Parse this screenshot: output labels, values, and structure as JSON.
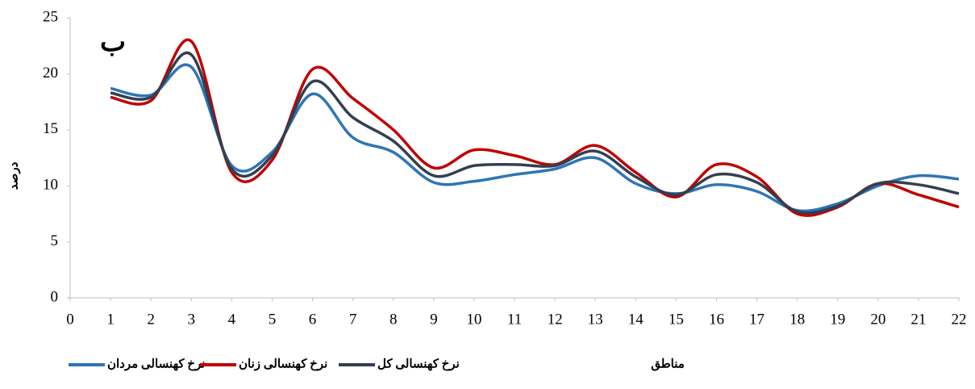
{
  "chart_data": {
    "type": "line",
    "annotation": "ب",
    "y_label": "درصد",
    "x_label": "مناطق",
    "x": [
      1,
      2,
      3,
      4,
      5,
      6,
      7,
      8,
      9,
      10,
      11,
      12,
      13,
      14,
      15,
      16,
      17,
      18,
      19,
      20,
      21,
      22
    ],
    "series": [
      {
        "name": "نرخ کهنسالی مردان",
        "color": "#2e75b6",
        "values": [
          18.7,
          18.1,
          20.6,
          11.8,
          13.0,
          18.2,
          14.3,
          13.0,
          10.3,
          10.4,
          11.0,
          11.5,
          12.5,
          10.2,
          9.3,
          10.1,
          9.5,
          7.8,
          8.4,
          10.0,
          10.9,
          10.6
        ]
      },
      {
        "name": "نرخ کهنسالی زنان",
        "color": "#c00000",
        "values": [
          17.9,
          17.6,
          22.9,
          11.2,
          12.3,
          20.4,
          17.8,
          15.0,
          11.6,
          13.2,
          12.7,
          11.9,
          13.6,
          11.2,
          9.0,
          11.9,
          10.8,
          7.5,
          8.1,
          10.2,
          9.2,
          8.1
        ]
      },
      {
        "name": "نرخ کهنسالی کل",
        "color": "#333f50",
        "values": [
          18.3,
          17.9,
          21.7,
          11.5,
          12.7,
          19.3,
          16.1,
          14.0,
          10.9,
          11.8,
          11.9,
          11.8,
          13.1,
          10.8,
          9.2,
          11.0,
          10.3,
          7.7,
          8.2,
          10.2,
          10.1,
          9.3
        ]
      }
    ],
    "xlim": [
      0,
      22
    ],
    "xticks": [
      0,
      1,
      2,
      3,
      4,
      5,
      6,
      7,
      8,
      9,
      10,
      11,
      12,
      13,
      14,
      15,
      16,
      17,
      18,
      19,
      20,
      21,
      22
    ],
    "ylim": [
      0,
      25
    ],
    "yticks": [
      0,
      5,
      10,
      15,
      20,
      25
    ]
  }
}
